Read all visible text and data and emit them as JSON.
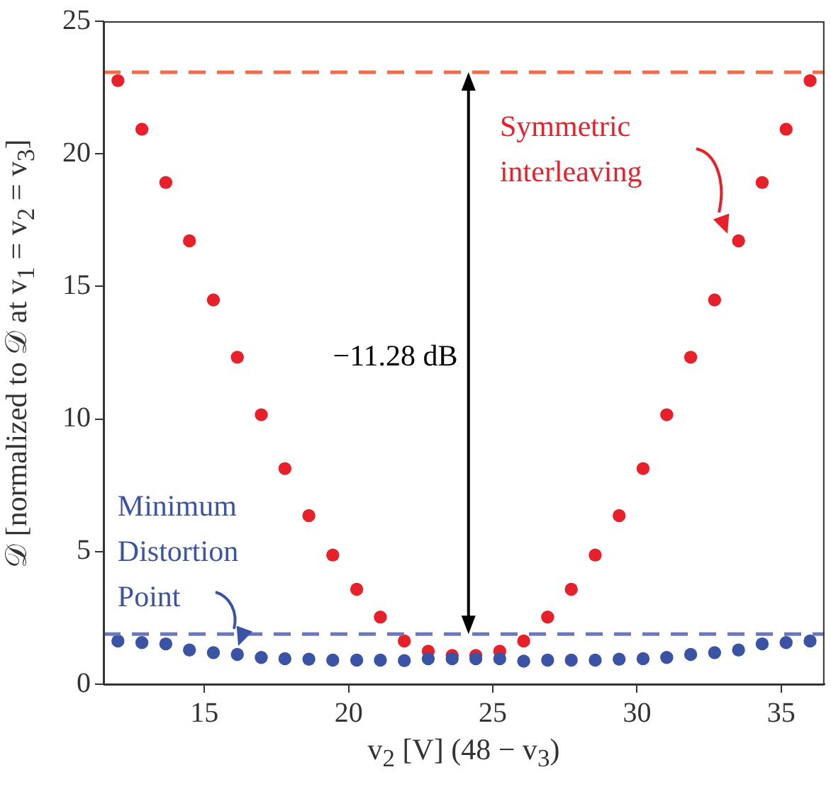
{
  "chart_data": {
    "type": "scatter",
    "xlabel": "v$_{2}$ [V] (48 − v$_{3}$)",
    "ylabel": "𝒟 [normalized to 𝒟 at v$_{1}$ = v$_{2}$ = v$_{3}$]",
    "x": [
      12,
      12.83,
      13.66,
      14.48,
      15.31,
      16.14,
      16.97,
      17.79,
      18.62,
      19.45,
      20.28,
      21.1,
      21.93,
      22.76,
      23.59,
      24.41,
      25.24,
      26.07,
      26.9,
      27.72,
      28.55,
      29.38,
      30.21,
      31.03,
      31.86,
      32.69,
      33.52,
      34.34,
      35.17,
      36
    ],
    "series": [
      {
        "color": "#e8202a",
        "values": [
          22.76,
          20.93,
          18.92,
          16.72,
          14.49,
          12.33,
          10.16,
          8.13,
          6.36,
          4.87,
          3.58,
          2.53,
          1.63,
          1.24,
          1.08,
          1.08,
          1.24,
          1.63,
          2.53,
          3.58,
          4.87,
          6.36,
          8.13,
          10.16,
          12.33,
          14.49,
          16.72,
          18.92,
          20.93,
          22.76
        ]
      },
      {
        "color": "#3a53a4",
        "values": [
          1.63,
          1.57,
          1.52,
          1.29,
          1.19,
          1.12,
          1.01,
          0.96,
          0.94,
          0.91,
          0.91,
          0.91,
          0.89,
          0.96,
          0.96,
          0.96,
          0.96,
          0.87,
          0.91,
          0.91,
          0.91,
          0.94,
          0.96,
          1.01,
          1.12,
          1.19,
          1.29,
          1.52,
          1.57,
          1.63
        ]
      }
    ],
    "xlim": [
      11.5,
      36.5
    ],
    "xticks": [
      15,
      20,
      25,
      30,
      35
    ],
    "ylim": [
      0,
      25
    ],
    "yticks": [
      0,
      5,
      10,
      15,
      20,
      25
    ],
    "marker": "circle",
    "ref_lines": [
      {
        "axis": "y",
        "value": 23.08,
        "color": "#f26b4a",
        "line_style": "dashed"
      },
      {
        "axis": "y",
        "value": 1.89,
        "color": "#6a78c0",
        "line_style": "dashed"
      }
    ],
    "annotations": [
      "Symmetric interleaving",
      "−11.28 dB",
      "Minimum Distortion Point"
    ]
  }
}
